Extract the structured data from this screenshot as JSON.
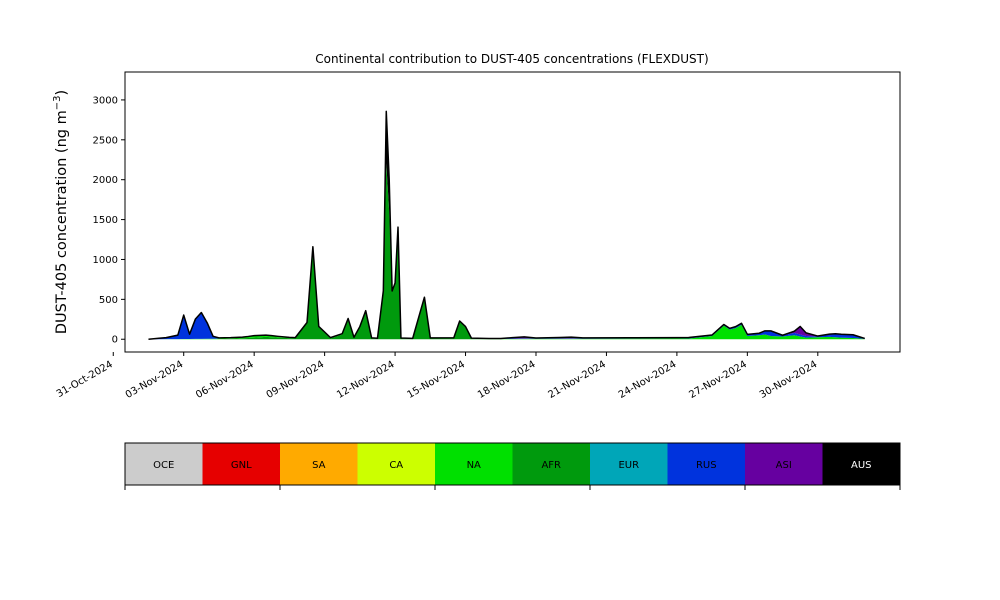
{
  "chart_data": {
    "type": "area",
    "title": "Continental contribution to DUST-405 concentrations (FLEXDUST)",
    "ylabel": "DUST-405 concentration (ng m",
    "ylabel_sup": "−3",
    "ylabel_close": ")",
    "xlabel": "",
    "x_type": "date",
    "xlim": [
      "2024-10-31T12:00",
      "2024-12-03T12:00"
    ],
    "ylim": [
      -160,
      3350
    ],
    "y_ticks": [
      0,
      500,
      1000,
      1500,
      2000,
      2500,
      3000
    ],
    "x_ticks": [
      "2024-10-31",
      "2024-11-03",
      "2024-11-06",
      "2024-11-09",
      "2024-11-12",
      "2024-11-15",
      "2024-11-18",
      "2024-11-21",
      "2024-11-24",
      "2024-11-27",
      "2024-11-30"
    ],
    "x_tick_labels": [
      "31-Oct-2024",
      "03-Nov-2024",
      "06-Nov-2024",
      "09-Nov-2024",
      "12-Nov-2024",
      "15-Nov-2024",
      "18-Nov-2024",
      "21-Nov-2024",
      "24-Nov-2024",
      "27-Nov-2024",
      "30-Nov-2024"
    ],
    "grid": false,
    "legend_placement": "bottom",
    "legend": [
      {
        "name": "OCE",
        "color": "#cccccc",
        "text_color": "#000000"
      },
      {
        "name": "GNL",
        "color": "#e60000",
        "text_color": "#000000"
      },
      {
        "name": "SA",
        "color": "#ffaa00",
        "text_color": "#000000"
      },
      {
        "name": "CA",
        "color": "#ccff00",
        "text_color": "#000000"
      },
      {
        "name": "NA",
        "color": "#00e000",
        "text_color": "#000000"
      },
      {
        "name": "AFR",
        "color": "#009a0d",
        "text_color": "#000000"
      },
      {
        "name": "EUR",
        "color": "#00a6b8",
        "text_color": "#000000"
      },
      {
        "name": "RUS",
        "color": "#0033dd",
        "text_color": "#000000"
      },
      {
        "name": "ASI",
        "color": "#6600a0",
        "text_color": "#000000"
      },
      {
        "name": "AUS",
        "color": "#000000",
        "text_color": "#ffffff"
      }
    ],
    "series": [
      {
        "name": "AFR",
        "color": "#009a0d",
        "points": [
          [
            "2024-11-01T12:00",
            0
          ],
          [
            "2024-11-04T12:00",
            0
          ],
          [
            "2024-11-05T18:00",
            15
          ],
          [
            "2024-11-06T12:00",
            30
          ],
          [
            "2024-11-07T00:00",
            20
          ],
          [
            "2024-11-07T18:00",
            10
          ],
          [
            "2024-11-08T06:00",
            200
          ],
          [
            "2024-11-08T12:00",
            1150
          ],
          [
            "2024-11-08T18:00",
            150
          ],
          [
            "2024-11-09T06:00",
            10
          ],
          [
            "2024-11-09T18:00",
            60
          ],
          [
            "2024-11-10T00:00",
            250
          ],
          [
            "2024-11-10T06:00",
            15
          ],
          [
            "2024-11-10T12:00",
            150
          ],
          [
            "2024-11-10T18:00",
            350
          ],
          [
            "2024-11-11T00:00",
            10
          ],
          [
            "2024-11-11T06:00",
            5
          ],
          [
            "2024-11-11T12:00",
            600
          ],
          [
            "2024-11-11T15:00",
            2200
          ],
          [
            "2024-11-11T18:00",
            1600
          ],
          [
            "2024-11-11T21:00",
            600
          ],
          [
            "2024-11-12T00:00",
            700
          ],
          [
            "2024-11-12T03:00",
            1300
          ],
          [
            "2024-11-12T06:00",
            10
          ],
          [
            "2024-11-12T18:00",
            5
          ],
          [
            "2024-11-13T06:00",
            520
          ],
          [
            "2024-11-13T12:00",
            10
          ],
          [
            "2024-11-14T12:00",
            10
          ],
          [
            "2024-11-14T18:00",
            220
          ],
          [
            "2024-11-15T00:00",
            150
          ],
          [
            "2024-11-15T06:00",
            5
          ],
          [
            "2024-11-16T00:00",
            0
          ],
          [
            "2024-12-02T00:00",
            0
          ]
        ]
      },
      {
        "name": "NA",
        "color": "#00e000",
        "points": [
          [
            "2024-11-01T12:00",
            0
          ],
          [
            "2024-11-02T00:00",
            0
          ],
          [
            "2024-11-05T12:00",
            10
          ],
          [
            "2024-11-06T00:00",
            20
          ],
          [
            "2024-11-06T18:00",
            15
          ],
          [
            "2024-11-07T12:00",
            5
          ],
          [
            "2024-11-17T00:00",
            5
          ],
          [
            "2024-11-22T00:00",
            8
          ],
          [
            "2024-11-24T12:00",
            10
          ],
          [
            "2024-11-25T12:00",
            40
          ],
          [
            "2024-11-26T00:00",
            170
          ],
          [
            "2024-11-26T06:00",
            120
          ],
          [
            "2024-11-26T12:00",
            140
          ],
          [
            "2024-11-26T18:00",
            180
          ],
          [
            "2024-11-27T00:00",
            40
          ],
          [
            "2024-11-27T12:00",
            50
          ],
          [
            "2024-11-27T18:00",
            60
          ],
          [
            "2024-11-28T00:00",
            40
          ],
          [
            "2024-11-28T12:00",
            35
          ],
          [
            "2024-11-29T00:00",
            50
          ],
          [
            "2024-11-29T12:00",
            20
          ],
          [
            "2024-11-30T00:00",
            25
          ],
          [
            "2024-11-30T12:00",
            30
          ],
          [
            "2024-12-01T00:00",
            20
          ],
          [
            "2024-12-01T12:00",
            15
          ],
          [
            "2024-12-02T00:00",
            5
          ]
        ]
      },
      {
        "name": "RUS",
        "color": "#0033dd",
        "points": [
          [
            "2024-11-01T12:00",
            0
          ],
          [
            "2024-11-02T06:00",
            20
          ],
          [
            "2024-11-02T18:00",
            50
          ],
          [
            "2024-11-03T00:00",
            300
          ],
          [
            "2024-11-03T06:00",
            60
          ],
          [
            "2024-11-03T12:00",
            250
          ],
          [
            "2024-11-03T18:00",
            330
          ],
          [
            "2024-11-04T00:00",
            200
          ],
          [
            "2024-11-04T06:00",
            30
          ],
          [
            "2024-11-04T12:00",
            10
          ],
          [
            "2024-11-05T00:00",
            5
          ],
          [
            "2024-11-07T00:00",
            5
          ],
          [
            "2024-11-10T00:00",
            5
          ],
          [
            "2024-11-12T00:00",
            0
          ],
          [
            "2024-11-16T00:00",
            5
          ],
          [
            "2024-11-18T00:00",
            5
          ],
          [
            "2024-11-20T00:00",
            5
          ],
          [
            "2024-11-24T00:00",
            5
          ],
          [
            "2024-11-26T00:00",
            10
          ],
          [
            "2024-11-27T12:00",
            20
          ],
          [
            "2024-11-28T00:00",
            60
          ],
          [
            "2024-11-28T12:00",
            10
          ],
          [
            "2024-11-29T00:00",
            30
          ],
          [
            "2024-11-30T00:00",
            10
          ],
          [
            "2024-11-30T18:00",
            40
          ],
          [
            "2024-12-01T12:00",
            40
          ],
          [
            "2024-12-02T00:00",
            5
          ]
        ]
      },
      {
        "name": "ASI",
        "color": "#6600a0",
        "points": [
          [
            "2024-11-01T12:00",
            0
          ],
          [
            "2024-11-16T12:00",
            0
          ],
          [
            "2024-11-17T12:00",
            20
          ],
          [
            "2024-11-18T00:00",
            5
          ],
          [
            "2024-11-19T00:00",
            10
          ],
          [
            "2024-11-19T12:00",
            15
          ],
          [
            "2024-11-20T00:00",
            5
          ],
          [
            "2024-11-28T12:00",
            5
          ],
          [
            "2024-11-29T00:00",
            20
          ],
          [
            "2024-11-29T06:00",
            100
          ],
          [
            "2024-11-29T12:00",
            40
          ],
          [
            "2024-11-30T00:00",
            5
          ],
          [
            "2024-12-02T00:00",
            0
          ]
        ]
      },
      {
        "name": "AUS",
        "color": "#000000",
        "points": [
          [
            "2024-11-01T12:00",
            0
          ],
          [
            "2024-11-11T12:00",
            0
          ],
          [
            "2024-11-11T15:00",
            650
          ],
          [
            "2024-11-11T18:00",
            400
          ],
          [
            "2024-11-11T21:00",
            0
          ],
          [
            "2024-11-12T00:00",
            0
          ],
          [
            "2024-11-12T03:00",
            100
          ],
          [
            "2024-11-12T06:00",
            0
          ],
          [
            "2024-12-02T00:00",
            0
          ]
        ]
      }
    ]
  }
}
